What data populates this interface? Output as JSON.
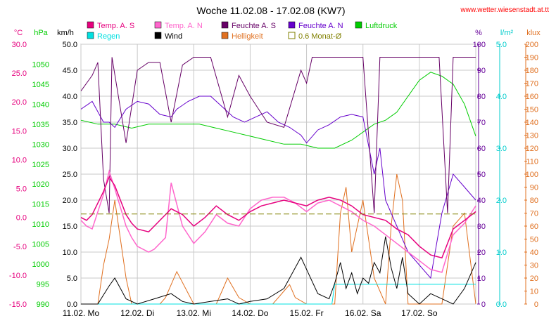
{
  "chart_data": {
    "type": "line",
    "title": "Woche 11.02.08 - 17.02.08 (KW7)",
    "source": "www.wetter.wiesenstadt.at.tt",
    "x_ticks": [
      "11.02. Mo",
      "12.02. Di",
      "13.02. Mi",
      "14.02. Do",
      "15.02. Fr",
      "16.02. Sa",
      "17.02. So"
    ],
    "axes": [
      {
        "key": "temp",
        "unit": "°C",
        "color": "#e6007e",
        "min": -15,
        "max": 30,
        "ticks": [
          "-15.0",
          "-10.0",
          "-5.0",
          "0.0",
          "5.0",
          "10.0",
          "15.0",
          "20.0",
          "25.0",
          "30.0"
        ]
      },
      {
        "key": "press",
        "unit": "hPa",
        "color": "#00cc00",
        "min": 990,
        "max": 1055,
        "ticks": [
          "990",
          "995",
          "1000",
          "1005",
          "1010",
          "1015",
          "1020",
          "1025",
          "1030",
          "1035",
          "1040",
          "1045",
          "1050"
        ]
      },
      {
        "key": "wind",
        "unit": "km/h",
        "color": "#000000",
        "min": 0,
        "max": 50,
        "ticks": [
          "0.0",
          "5.0",
          "10.0",
          "15.0",
          "20.0",
          "25.0",
          "30.0",
          "35.0",
          "40.0",
          "45.0",
          "50.0"
        ]
      },
      {
        "key": "hum",
        "unit": "%",
        "color": "#660099",
        "min": 0,
        "max": 100,
        "ticks": [
          "0",
          "10",
          "20",
          "30",
          "40",
          "50",
          "60",
          "70",
          "80",
          "90",
          "100"
        ]
      },
      {
        "key": "rain",
        "unit": "l/m²",
        "color": "#00cccc",
        "min": 0,
        "max": 5,
        "ticks": [
          "0.0",
          "1.0",
          "2.0",
          "3.0",
          "4.0",
          "5.0"
        ]
      },
      {
        "key": "lux",
        "unit": "klux",
        "color": "#e07020",
        "min": 0,
        "max": 200,
        "ticks": [
          "0",
          "10",
          "20",
          "30",
          "40",
          "50",
          "60",
          "70",
          "80",
          "90",
          "100",
          "110",
          "120",
          "130",
          "140",
          "150",
          "160",
          "170",
          "180",
          "190",
          "200"
        ]
      }
    ],
    "legend": [
      {
        "label": "Temp. A. S",
        "color": "#e6007e"
      },
      {
        "label": "Temp. A. N",
        "color": "#ff66cc"
      },
      {
        "label": "Feuchte A. S",
        "color": "#660066"
      },
      {
        "label": "Feuchte A. N",
        "color": "#6600cc"
      },
      {
        "label": "Luftdruck",
        "color": "#00cc00"
      },
      {
        "label": "Regen",
        "color": "#00e0e0"
      },
      {
        "label": "Wind",
        "color": "#000000"
      },
      {
        "label": "Helligkeit",
        "color": "#e07020"
      },
      {
        "label": "0.6 Monat-Ø",
        "color": "#808000"
      }
    ],
    "series": [
      {
        "name": "Temp. A. S",
        "axis": "temp",
        "color": "#e6007e",
        "x": [
          0,
          0.1,
          0.2,
          0.4,
          0.5,
          0.6,
          0.8,
          0.9,
          1.0,
          1.2,
          1.3,
          1.5,
          1.6,
          1.8,
          2.0,
          2.2,
          2.4,
          2.6,
          2.8,
          3.0,
          3.2,
          3.4,
          3.6,
          3.8,
          4.0,
          4.2,
          4.4,
          4.6,
          4.8,
          5.0,
          5.2,
          5.4,
          5.6,
          5.8,
          6.0,
          6.2,
          6.4,
          6.6,
          6.8,
          7.0
        ],
        "y": [
          0.0,
          -0.5,
          0.5,
          4.5,
          7.0,
          5.5,
          0.5,
          -1.0,
          -2.0,
          -2.5,
          -1.5,
          0.5,
          1.5,
          0.5,
          -1.5,
          0.0,
          2.0,
          0.5,
          -0.5,
          1.0,
          2.0,
          2.5,
          3.0,
          2.5,
          2.0,
          3.0,
          3.5,
          3.0,
          2.0,
          0.5,
          0.0,
          -0.5,
          -2.0,
          -3.0,
          -5.0,
          -6.5,
          -7.0,
          -2.0,
          -0.5,
          1.0
        ]
      },
      {
        "name": "Temp. A. N",
        "axis": "temp",
        "color": "#ff66cc",
        "x": [
          0,
          0.1,
          0.2,
          0.4,
          0.5,
          0.6,
          0.8,
          0.9,
          1.0,
          1.2,
          1.3,
          1.5,
          1.6,
          1.8,
          2.0,
          2.2,
          2.4,
          2.6,
          2.8,
          3.0,
          3.2,
          3.4,
          3.6,
          3.8,
          4.0,
          4.2,
          4.4,
          4.6,
          4.8,
          5.0,
          5.2,
          5.4,
          5.6,
          5.8,
          6.0,
          6.2,
          6.4,
          6.6,
          6.8,
          7.0
        ],
        "y": [
          -0.5,
          -1.5,
          -2.0,
          4.0,
          8.0,
          5.0,
          -1.5,
          -3.5,
          -5.0,
          -6.0,
          -5.5,
          -3.5,
          6.0,
          -1.5,
          -4.5,
          -2.5,
          0.5,
          -1.0,
          -1.5,
          1.5,
          3.0,
          3.5,
          3.5,
          2.5,
          1.0,
          2.5,
          3.0,
          2.0,
          1.0,
          -0.5,
          -1.5,
          -3.0,
          -4.5,
          -6.0,
          -7.5,
          -9.0,
          -9.5,
          -3.0,
          -1.0,
          2.0
        ]
      },
      {
        "name": "Feuchte A. S",
        "axis": "hum",
        "color": "#660066",
        "x": [
          0,
          0.2,
          0.3,
          0.4,
          0.5,
          0.55,
          0.8,
          1.0,
          1.2,
          1.4,
          1.6,
          1.8,
          2.0,
          2.3,
          2.6,
          2.8,
          3.0,
          3.3,
          3.6,
          3.9,
          4.0,
          4.1,
          4.2,
          4.4,
          4.6,
          4.8,
          5.0,
          5.2,
          5.3,
          5.4,
          5.6,
          5.8,
          6.0,
          6.2,
          6.35,
          6.5,
          6.6,
          6.8,
          7.0
        ],
        "y": [
          82,
          88,
          93,
          48,
          35,
          95,
          62,
          90,
          93,
          93,
          70,
          92,
          95,
          95,
          72,
          88,
          80,
          70,
          68,
          90,
          85,
          95,
          95,
          95,
          95,
          95,
          95,
          35,
          95,
          95,
          95,
          95,
          95,
          95,
          95,
          35,
          95,
          95,
          95
        ]
      },
      {
        "name": "Feuchte A. N",
        "axis": "hum",
        "color": "#6600cc",
        "x": [
          0,
          0.2,
          0.4,
          0.5,
          0.6,
          0.8,
          1.0,
          1.2,
          1.4,
          1.6,
          1.7,
          1.9,
          2.1,
          2.3,
          2.5,
          2.7,
          2.9,
          3.1,
          3.3,
          3.5,
          3.7,
          3.9,
          4.0,
          4.2,
          4.4,
          4.6,
          4.8,
          5.0,
          5.2,
          5.3,
          5.4,
          5.6,
          5.8,
          6.0,
          6.2,
          6.4,
          6.6,
          6.8,
          7.0
        ],
        "y": [
          75,
          78,
          70,
          70,
          68,
          75,
          78,
          77,
          73,
          72,
          75,
          78,
          80,
          80,
          76,
          72,
          70,
          72,
          74,
          70,
          68,
          65,
          62,
          67,
          69,
          72,
          73,
          72,
          50,
          60,
          40,
          30,
          20,
          15,
          10,
          35,
          50,
          45,
          40
        ]
      },
      {
        "name": "Luftdruck",
        "axis": "press",
        "color": "#00cc00",
        "x": [
          0,
          0.3,
          0.6,
          0.9,
          1.2,
          1.5,
          1.8,
          2.1,
          2.4,
          2.7,
          3.0,
          3.3,
          3.6,
          3.9,
          4.2,
          4.5,
          4.8,
          5.0,
          5.2,
          5.4,
          5.6,
          5.8,
          6.0,
          6.2,
          6.4,
          6.6,
          6.8,
          7.0
        ],
        "y": [
          1036,
          1035,
          1035,
          1034,
          1035,
          1035,
          1035,
          1035,
          1034,
          1033,
          1032,
          1031,
          1030,
          1030,
          1029,
          1029,
          1031,
          1033,
          1035,
          1036,
          1038,
          1042,
          1046,
          1048,
          1047,
          1045,
          1040,
          1032
        ]
      },
      {
        "name": "Wind",
        "axis": "wind",
        "color": "#000000",
        "x": [
          0,
          0.3,
          0.5,
          0.6,
          0.7,
          0.8,
          1.0,
          1.3,
          1.6,
          1.8,
          2.0,
          2.3,
          2.6,
          2.8,
          3.0,
          3.3,
          3.6,
          3.9,
          4.2,
          4.4,
          4.5,
          4.6,
          4.7,
          4.8,
          4.9,
          5.0,
          5.1,
          5.2,
          5.3,
          5.4,
          5.5,
          5.6,
          5.7,
          5.8,
          5.9,
          6.0,
          6.2,
          6.4,
          6.6,
          6.8,
          7.0
        ],
        "y": [
          0,
          0,
          3.5,
          5,
          3,
          1,
          0,
          1,
          2,
          0.5,
          0,
          0.5,
          1,
          0,
          0.5,
          1,
          3,
          9,
          2,
          1,
          4,
          8,
          3,
          6,
          2,
          5,
          4,
          8,
          6,
          13,
          7,
          3,
          9,
          2,
          1,
          0,
          2,
          1,
          0,
          3,
          8
        ]
      },
      {
        "name": "Helligkeit",
        "axis": "lux",
        "color": "#e07020",
        "x": [
          0,
          0.1,
          0.2,
          0.3,
          0.4,
          0.5,
          0.6,
          0.7,
          0.8,
          0.9,
          1.0,
          1.1,
          1.2,
          1.3,
          1.4,
          1.5,
          1.6,
          1.7,
          2.0,
          2.2,
          2.4,
          2.5,
          2.6,
          2.8,
          3.0,
          3.2,
          3.4,
          3.5,
          3.6,
          3.7,
          3.8,
          4.0,
          4.2,
          4.3,
          4.4,
          4.5,
          4.6,
          4.7,
          4.8,
          5.0,
          5.2,
          5.4,
          5.5,
          5.6,
          5.7,
          5.8,
          6.0,
          6.2,
          6.4,
          6.5,
          6.6,
          6.8,
          7.0
        ],
        "y": [
          0,
          0,
          0,
          0,
          30,
          50,
          80,
          50,
          20,
          0,
          0,
          0,
          0,
          0,
          0,
          5,
          15,
          25,
          0,
          0,
          0,
          10,
          20,
          5,
          0,
          0,
          0,
          5,
          10,
          15,
          5,
          0,
          0,
          0,
          0,
          0,
          70,
          90,
          40,
          80,
          20,
          0,
          60,
          100,
          80,
          0,
          0,
          0,
          0,
          30,
          60,
          70,
          0
        ]
      },
      {
        "name": "Regen",
        "axis": "rain",
        "color": "#00e0e0",
        "x": [
          0,
          4.45,
          4.5,
          7.0
        ],
        "y": [
          0,
          0,
          0.38,
          0.38
        ]
      },
      {
        "name": "0.6 Monat-Ø",
        "axis": "temp",
        "color": "#808000",
        "x": [
          0,
          7.0
        ],
        "y": [
          0.6,
          0.6
        ]
      }
    ]
  }
}
